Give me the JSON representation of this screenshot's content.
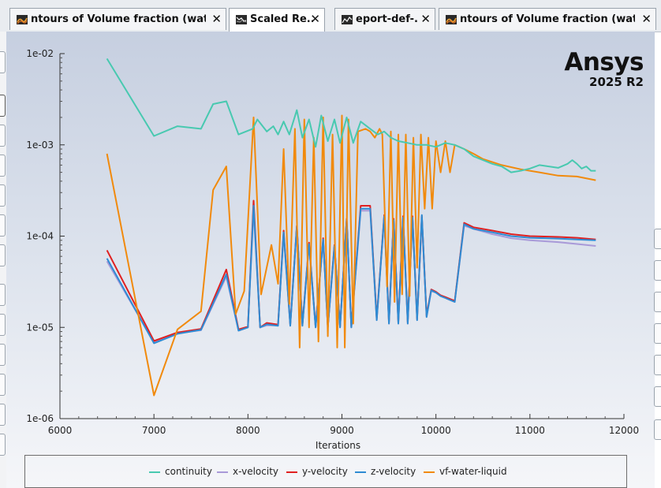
{
  "tabs": [
    {
      "label": "ntours of Volume fraction (water-l",
      "active": false,
      "icon": "contour-plot-icon"
    },
    {
      "label": "Scaled Re...",
      "active": true,
      "icon": "residuals-plot-icon"
    },
    {
      "label": "eport-def-..",
      "active": false,
      "icon": "report-plot-icon"
    },
    {
      "label": "ntours of Volume fraction (water-l",
      "active": false,
      "icon": "contour-plot-icon"
    }
  ],
  "logo": {
    "brand": "Ansys",
    "version": "2025 R2"
  },
  "chart_data": {
    "type": "line",
    "title": "",
    "xlabel": "Iterations",
    "ylabel": "",
    "xlim": [
      6000,
      12000
    ],
    "ylim": [
      1e-06,
      0.01
    ],
    "y_scale": "log",
    "x_ticks": [
      "6000",
      "7000",
      "8000",
      "9000",
      "10000",
      "11000",
      "12000"
    ],
    "y_ticks": [
      "1e-02",
      "1e-03",
      "1e-04",
      "1e-05",
      "1e-06"
    ],
    "legend_placement": "bottom",
    "grid": false,
    "series": [
      {
        "name": "continuity",
        "color": "#48c9b0",
        "points": [
          [
            6500,
            0.0088
          ],
          [
            7000,
            0.00125
          ],
          [
            7250,
            0.0016
          ],
          [
            7500,
            0.0015
          ],
          [
            7630,
            0.0028
          ],
          [
            7770,
            0.003
          ],
          [
            7900,
            0.0013
          ],
          [
            8050,
            0.0015
          ],
          [
            8100,
            0.0019
          ],
          [
            8200,
            0.0014
          ],
          [
            8270,
            0.0016
          ],
          [
            8320,
            0.0013
          ],
          [
            8380,
            0.0018
          ],
          [
            8440,
            0.0013
          ],
          [
            8520,
            0.0024
          ],
          [
            8580,
            0.0012
          ],
          [
            8650,
            0.0019
          ],
          [
            8720,
            0.00095
          ],
          [
            8780,
            0.0021
          ],
          [
            8850,
            0.0011
          ],
          [
            8920,
            0.0019
          ],
          [
            8980,
            0.00105
          ],
          [
            9050,
            0.002
          ],
          [
            9120,
            0.00105
          ],
          [
            9200,
            0.0018
          ],
          [
            9300,
            0.0015
          ],
          [
            9380,
            0.0013
          ],
          [
            9450,
            0.0014
          ],
          [
            9520,
            0.0012
          ],
          [
            9600,
            0.0011
          ],
          [
            9700,
            0.00105
          ],
          [
            9800,
            0.001
          ],
          [
            9900,
            0.001
          ],
          [
            10000,
            0.00095
          ],
          [
            10100,
            0.00105
          ],
          [
            10200,
            0.001
          ],
          [
            10300,
            0.0009
          ],
          [
            10400,
            0.00075
          ],
          [
            10500,
            0.00068
          ],
          [
            10600,
            0.00062
          ],
          [
            10700,
            0.00058
          ],
          [
            10800,
            0.0005
          ],
          [
            10900,
            0.00052
          ],
          [
            11000,
            0.00055
          ],
          [
            11100,
            0.0006
          ],
          [
            11200,
            0.00058
          ],
          [
            11300,
            0.00056
          ],
          [
            11400,
            0.00062
          ],
          [
            11450,
            0.00068
          ],
          [
            11500,
            0.00062
          ],
          [
            11550,
            0.00055
          ],
          [
            11600,
            0.00058
          ],
          [
            11650,
            0.00052
          ],
          [
            11700,
            0.00052
          ]
        ]
      },
      {
        "name": "x-velocity",
        "color": "#a99ad8",
        "points": [
          [
            6500,
            5.3e-05
          ],
          [
            7000,
            6.9e-06
          ],
          [
            7250,
            8.6e-06
          ],
          [
            7500,
            9.3e-06
          ],
          [
            7770,
            3.6e-05
          ],
          [
            7900,
            9.2e-06
          ],
          [
            8000,
            1e-05
          ],
          [
            8060,
            0.00019
          ],
          [
            8130,
            1e-05
          ],
          [
            8200,
            1.05e-05
          ],
          [
            8320,
            1.05e-05
          ],
          [
            8380,
            0.000105
          ],
          [
            8450,
            1.05e-05
          ],
          [
            8520,
            0.000125
          ],
          [
            8580,
            1.05e-05
          ],
          [
            8650,
            8e-05
          ],
          [
            8720,
            1e-05
          ],
          [
            8800,
            9e-05
          ],
          [
            8850,
            1e-05
          ],
          [
            8920,
            7.5e-05
          ],
          [
            8980,
            1e-05
          ],
          [
            9050,
            0.00015
          ],
          [
            9100,
            1e-05
          ],
          [
            9200,
            0.00019
          ],
          [
            9300,
            0.00019
          ],
          [
            9370,
            1.2e-05
          ],
          [
            9450,
            0.00016
          ],
          [
            9500,
            1.1e-05
          ],
          [
            9550,
            0.00015
          ],
          [
            9600,
            1.1e-05
          ],
          [
            9650,
            0.00016
          ],
          [
            9700,
            1.1e-05
          ],
          [
            9750,
            0.00016
          ],
          [
            9800,
            1.2e-05
          ],
          [
            9850,
            0.00016
          ],
          [
            9900,
            1.3e-05
          ],
          [
            9950,
            2.5e-05
          ],
          [
            10000,
            2.4e-05
          ],
          [
            10050,
            2.2e-05
          ],
          [
            10100,
            2.1e-05
          ],
          [
            10200,
            1.9e-05
          ],
          [
            10300,
            0.00013
          ],
          [
            10400,
            0.00012
          ],
          [
            10600,
            0.000105
          ],
          [
            10800,
            9.5e-05
          ],
          [
            11000,
            9e-05
          ],
          [
            11300,
            8.6e-05
          ],
          [
            11500,
            8.2e-05
          ],
          [
            11700,
            7.8e-05
          ]
        ]
      },
      {
        "name": "y-velocity",
        "color": "#e02020",
        "points": [
          [
            6500,
            7e-05
          ],
          [
            7000,
            7.1e-06
          ],
          [
            7250,
            8.8e-06
          ],
          [
            7500,
            9.6e-06
          ],
          [
            7770,
            4.3e-05
          ],
          [
            7900,
            9.5e-06
          ],
          [
            8000,
            1.02e-05
          ],
          [
            8060,
            0.000245
          ],
          [
            8130,
            1e-05
          ],
          [
            8200,
            1.12e-05
          ],
          [
            8320,
            1.07e-05
          ],
          [
            8380,
            0.000115
          ],
          [
            8450,
            1.07e-05
          ],
          [
            8520,
            0.00013
          ],
          [
            8580,
            1.07e-05
          ],
          [
            8650,
            8.5e-05
          ],
          [
            8720,
            1.02e-05
          ],
          [
            8800,
            9.5e-05
          ],
          [
            8850,
            1.02e-05
          ],
          [
            8920,
            8e-05
          ],
          [
            8980,
            1.02e-05
          ],
          [
            9050,
            0.000155
          ],
          [
            9100,
            1.02e-05
          ],
          [
            9200,
            0.000215
          ],
          [
            9300,
            0.000215
          ],
          [
            9370,
            1.25e-05
          ],
          [
            9450,
            0.00017
          ],
          [
            9500,
            1.15e-05
          ],
          [
            9550,
            0.000155
          ],
          [
            9600,
            1.15e-05
          ],
          [
            9650,
            0.000165
          ],
          [
            9700,
            1.15e-05
          ],
          [
            9750,
            0.000165
          ],
          [
            9800,
            1.25e-05
          ],
          [
            9850,
            0.000165
          ],
          [
            9900,
            1.35e-05
          ],
          [
            9950,
            2.6e-05
          ],
          [
            10000,
            2.45e-05
          ],
          [
            10050,
            2.25e-05
          ],
          [
            10100,
            2.15e-05
          ],
          [
            10200,
            1.95e-05
          ],
          [
            10300,
            0.00014
          ],
          [
            10400,
            0.000125
          ],
          [
            10600,
            0.000115
          ],
          [
            10800,
            0.000105
          ],
          [
            11000,
            0.0001
          ],
          [
            11300,
            9.8e-05
          ],
          [
            11500,
            9.6e-05
          ],
          [
            11700,
            9.2e-05
          ]
        ]
      },
      {
        "name": "z-velocity",
        "color": "#2e8bd3",
        "points": [
          [
            6500,
            5.7e-05
          ],
          [
            7000,
            6.7e-06
          ],
          [
            7250,
            8.5e-06
          ],
          [
            7500,
            9.4e-06
          ],
          [
            7770,
            3.8e-05
          ],
          [
            7900,
            9.2e-06
          ],
          [
            8000,
            1e-05
          ],
          [
            8060,
            0.000215
          ],
          [
            8130,
            1e-05
          ],
          [
            8200,
            1.08e-05
          ],
          [
            8320,
            1.04e-05
          ],
          [
            8380,
            0.00011
          ],
          [
            8450,
            1.04e-05
          ],
          [
            8520,
            0.000128
          ],
          [
            8580,
            1.04e-05
          ],
          [
            8650,
            8.2e-05
          ],
          [
            8720,
            1e-05
          ],
          [
            8800,
            9.2e-05
          ],
          [
            8850,
            1e-05
          ],
          [
            8920,
            7.8e-05
          ],
          [
            8980,
            1e-05
          ],
          [
            9050,
            0.000152
          ],
          [
            9100,
            1e-05
          ],
          [
            9200,
            0.0002
          ],
          [
            9300,
            0.0002
          ],
          [
            9370,
            1.2e-05
          ],
          [
            9450,
            0.000165
          ],
          [
            9500,
            1.1e-05
          ],
          [
            9550,
            0.00015
          ],
          [
            9600,
            1.1e-05
          ],
          [
            9650,
            0.00016
          ],
          [
            9700,
            1.1e-05
          ],
          [
            9750,
            0.00016
          ],
          [
            9800,
            1.2e-05
          ],
          [
            9850,
            0.00017
          ],
          [
            9900,
            1.3e-05
          ],
          [
            9950,
            2.55e-05
          ],
          [
            10000,
            2.4e-05
          ],
          [
            10050,
            2.2e-05
          ],
          [
            10100,
            2.1e-05
          ],
          [
            10200,
            1.9e-05
          ],
          [
            10300,
            0.000135
          ],
          [
            10400,
            0.00012
          ],
          [
            10600,
            0.00011
          ],
          [
            10800,
            0.0001
          ],
          [
            11000,
            9.6e-05
          ],
          [
            11300,
            9.4e-05
          ],
          [
            11500,
            9.2e-05
          ],
          [
            11700,
            9e-05
          ]
        ]
      },
      {
        "name": "vf-water-liquid",
        "color": "#f18a0c",
        "points": [
          [
            6500,
            0.0008
          ],
          [
            7000,
            1.8e-06
          ],
          [
            7250,
            9.5e-06
          ],
          [
            7500,
            1.5e-05
          ],
          [
            7630,
            0.00032
          ],
          [
            7770,
            0.00058
          ],
          [
            7870,
            1.4e-05
          ],
          [
            7960,
            2.5e-05
          ],
          [
            8060,
            0.002
          ],
          [
            8140,
            2.3e-05
          ],
          [
            8250,
            8e-05
          ],
          [
            8320,
            3e-05
          ],
          [
            8380,
            0.0009
          ],
          [
            8440,
            1.8e-05
          ],
          [
            8500,
            0.0015
          ],
          [
            8550,
            6e-06
          ],
          [
            8600,
            0.0019
          ],
          [
            8650,
            1e-05
          ],
          [
            8700,
            0.0012
          ],
          [
            8750,
            7e-06
          ],
          [
            8800,
            0.002
          ],
          [
            8850,
            8e-06
          ],
          [
            8900,
            0.0013
          ],
          [
            8950,
            6e-06
          ],
          [
            9000,
            0.0021
          ],
          [
            9030,
            6e-06
          ],
          [
            9070,
            0.0019
          ],
          [
            9120,
            1.1e-05
          ],
          [
            9170,
            0.0014
          ],
          [
            9250,
            0.0015
          ],
          [
            9300,
            0.0014
          ],
          [
            9350,
            0.0012
          ],
          [
            9400,
            0.0015
          ],
          [
            9430,
            0.0013
          ],
          [
            9480,
            2.8e-05
          ],
          [
            9520,
            0.0014
          ],
          [
            9560,
            1.9e-05
          ],
          [
            9600,
            0.0013
          ],
          [
            9640,
            2.3e-05
          ],
          [
            9680,
            0.0013
          ],
          [
            9720,
            2.2e-05
          ],
          [
            9760,
            0.0012
          ],
          [
            9800,
            4.5e-05
          ],
          [
            9840,
            0.0013
          ],
          [
            9880,
            0.0002
          ],
          [
            9920,
            0.0012
          ],
          [
            9960,
            0.0002
          ],
          [
            10000,
            0.0011
          ],
          [
            10050,
            0.0005
          ],
          [
            10100,
            0.0011
          ],
          [
            10150,
            0.0005
          ],
          [
            10200,
            0.001
          ],
          [
            10300,
            0.0009
          ],
          [
            10400,
            0.0008
          ],
          [
            10500,
            0.0007
          ],
          [
            10700,
            0.0006
          ],
          [
            10900,
            0.00054
          ],
          [
            11100,
            0.0005
          ],
          [
            11300,
            0.00046
          ],
          [
            11500,
            0.00045
          ],
          [
            11700,
            0.00041
          ]
        ]
      }
    ]
  }
}
